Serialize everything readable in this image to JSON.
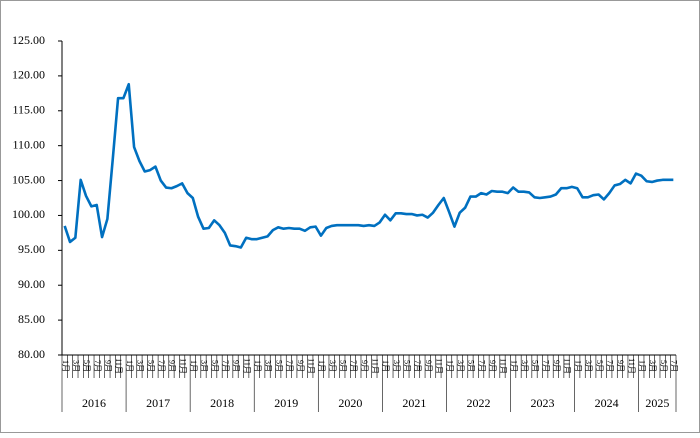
{
  "chart_data": {
    "type": "line",
    "categories": [
      "1月",
      null,
      "3月",
      null,
      "5月",
      null,
      "7月",
      null,
      "9月",
      null,
      "11月",
      null,
      "1月",
      null,
      "3月",
      null,
      "5月",
      null,
      "7月",
      null,
      "9月",
      null,
      "11月",
      null,
      "1月",
      null,
      "3月",
      null,
      "5月",
      null,
      "7月",
      null,
      "9月",
      null,
      "11月",
      null,
      "1月",
      null,
      "3月",
      null,
      "5月",
      null,
      "7月",
      null,
      "9月",
      null,
      "11月",
      null,
      "1月",
      null,
      "3月",
      null,
      "5月",
      null,
      "7月",
      null,
      "9月",
      null,
      "11月",
      null,
      "1月",
      null,
      "3月",
      null,
      "5月",
      null,
      "7月",
      null,
      "9月",
      null,
      "11月",
      null,
      "1月",
      null,
      "3月",
      null,
      "5月",
      null,
      "7月",
      null,
      "9月",
      null,
      "11月",
      null,
      "1月",
      null,
      "3月",
      null,
      "5月",
      null,
      "7月",
      null,
      "9月",
      null,
      "11月",
      null,
      "1月",
      null,
      "3月",
      null,
      "5月",
      null,
      "7月",
      null,
      "9月",
      null,
      "11月",
      null,
      "1月",
      null,
      "3月",
      null,
      "5月",
      null,
      "7月"
    ],
    "years": [
      "2016",
      "2017",
      "2018",
      "2019",
      "2020",
      "2021",
      "2022",
      "2023",
      "2024",
      "2025"
    ],
    "series": [
      {
        "color": "#0070c0",
        "values": [
          98.5,
          96.2,
          96.8,
          105.1,
          102.8,
          101.3,
          101.5,
          96.9,
          99.5,
          108.0,
          116.8,
          116.8,
          118.8,
          109.8,
          107.8,
          106.3,
          106.5,
          107.0,
          105.0,
          104.0,
          103.9,
          104.2,
          104.6,
          103.2,
          102.5,
          99.8,
          98.1,
          98.2,
          99.3,
          98.6,
          97.5,
          95.7,
          95.6,
          95.4,
          96.8,
          96.6,
          96.6,
          96.8,
          97.0,
          97.9,
          98.3,
          98.1,
          98.2,
          98.1,
          98.1,
          97.8,
          98.3,
          98.4,
          97.1,
          98.2,
          98.5,
          98.6,
          98.6,
          98.6,
          98.6,
          98.6,
          98.5,
          98.6,
          98.5,
          99.0,
          100.1,
          99.3,
          100.3,
          100.3,
          100.2,
          100.2,
          100.0,
          100.1,
          99.7,
          100.4,
          101.5,
          102.5,
          100.5,
          98.4,
          100.4,
          101.1,
          102.7,
          102.7,
          103.2,
          103.0,
          103.5,
          103.4,
          103.4,
          103.2,
          104.0,
          103.4,
          103.4,
          103.3,
          102.6,
          102.5,
          102.6,
          102.7,
          103.0,
          103.9,
          103.9,
          104.1,
          103.9,
          102.6,
          102.6,
          102.9,
          103.0,
          102.3,
          103.2,
          104.3,
          104.5,
          105.1,
          104.6,
          106.0,
          105.7,
          104.9,
          104.8,
          105.0,
          105.1,
          105.1,
          105.1
        ]
      }
    ],
    "ylim": [
      80,
      125
    ],
    "yticks": [
      {
        "value": 80,
        "label": "80.00"
      },
      {
        "value": 85,
        "label": "85.00"
      },
      {
        "value": 90,
        "label": "90.00"
      },
      {
        "value": 95,
        "label": "95.00"
      },
      {
        "value": 100,
        "label": "100.00"
      },
      {
        "value": 105,
        "label": "105.00"
      },
      {
        "value": 110,
        "label": "110.00"
      },
      {
        "value": 115,
        "label": "115.00"
      },
      {
        "value": 120,
        "label": "120.00"
      },
      {
        "value": 125,
        "label": "125.00"
      }
    ]
  }
}
